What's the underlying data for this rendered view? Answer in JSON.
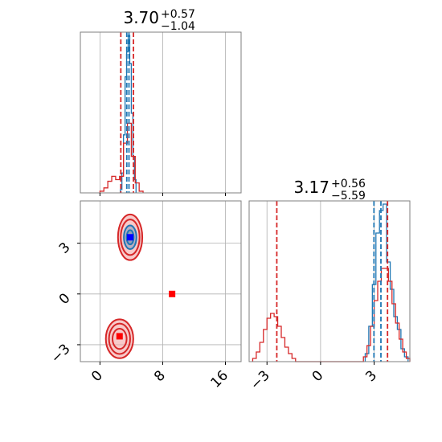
{
  "chart_data": [
    {
      "panel": "top-left",
      "type": "histogram",
      "title": {
        "value": "3.70",
        "plus": "+0.57",
        "minus": "−1.04"
      },
      "xlim": [
        -2.5,
        18
      ],
      "x_ticks": [
        0,
        8,
        16
      ],
      "series": [
        {
          "color": "#1f77b4",
          "bin_edges": [
            2.6,
            2.8,
            3.0,
            3.2,
            3.4,
            3.6,
            3.8,
            4.0,
            4.2,
            4.4,
            4.6
          ],
          "counts": [
            0.02,
            0.12,
            0.35,
            0.7,
            0.85,
            0.95,
            0.78,
            0.48,
            0.22,
            0.08
          ]
        },
        {
          "color": "#d62728",
          "bin_edges": [
            0.0,
            0.5,
            1.0,
            1.5,
            2.0,
            2.5,
            3.0,
            3.5,
            4.0,
            4.5,
            5.0,
            5.5
          ],
          "counts": [
            0.01,
            0.03,
            0.07,
            0.1,
            0.08,
            0.1,
            0.3,
            0.42,
            0.22,
            0.06,
            0.01
          ]
        }
      ],
      "vlines": [
        {
          "x": 2.66,
          "color": "#d62728"
        },
        {
          "x": 3.42,
          "color": "#1f77b4"
        },
        {
          "x": 3.7,
          "color": "#1f77b4"
        },
        {
          "x": 4.27,
          "color": "#d62728"
        }
      ]
    },
    {
      "panel": "bottom-left",
      "type": "scatter",
      "xlim": [
        -2.5,
        18
      ],
      "ylim": [
        -4,
        5.5
      ],
      "x_ticks": [
        0,
        8,
        16
      ],
      "y_ticks": [
        -3,
        0,
        3
      ],
      "x_tick_labels": [
        "0",
        "8",
        "16"
      ],
      "y_tick_labels": [
        "−3",
        "0",
        "3"
      ],
      "contours": [
        {
          "cx": 3.85,
          "cy": 3.35,
          "rx": 1.55,
          "ry": 1.35,
          "color": "#d62728"
        },
        {
          "cx": 3.85,
          "cy": 3.35,
          "rx": 1.2,
          "ry": 1.05,
          "color": "#d62728"
        },
        {
          "cx": 3.85,
          "cy": 3.35,
          "rx": 0.8,
          "ry": 0.7,
          "color": "#1f77b4"
        },
        {
          "cx": 3.85,
          "cy": 3.35,
          "rx": 0.45,
          "ry": 0.42,
          "color": "#1f77b4"
        },
        {
          "cx": 2.5,
          "cy": -2.65,
          "rx": 1.75,
          "ry": 1.15,
          "color": "#d62728"
        },
        {
          "cx": 2.5,
          "cy": -2.65,
          "rx": 1.35,
          "ry": 0.9,
          "color": "#d62728"
        },
        {
          "cx": 2.5,
          "cy": -2.65,
          "rx": 0.9,
          "ry": 0.6,
          "color": "#d62728"
        }
      ],
      "markers": [
        {
          "x": 3.85,
          "y": 3.35,
          "color": "#0000ff"
        },
        {
          "x": 2.5,
          "y": -2.5,
          "color": "#ff0000"
        },
        {
          "x": 9.2,
          "y": 0.0,
          "color": "#ff0000"
        }
      ]
    },
    {
      "panel": "bottom-right",
      "type": "histogram",
      "title": {
        "value": "3.17",
        "plus": "+0.56",
        "minus": "−5.59"
      },
      "xlim": [
        -4,
        5
      ],
      "x_ticks": [
        -3,
        0,
        3
      ],
      "x_tick_labels": [
        "−3",
        "0",
        "3"
      ],
      "series": [
        {
          "color": "#1f77b4",
          "bin_edges": [
            2.5,
            2.7,
            2.9,
            3.1,
            3.3,
            3.5,
            3.7,
            3.9,
            4.1,
            4.3,
            4.5,
            4.7,
            4.9
          ],
          "counts": [
            0.05,
            0.22,
            0.48,
            0.8,
            0.94,
            0.98,
            0.62,
            0.45,
            0.28,
            0.2,
            0.08,
            0.03
          ]
        },
        {
          "color": "#d62728",
          "bin_edges": [
            -3.8,
            -3.6,
            -3.4,
            -3.2,
            -3.0,
            -2.8,
            -2.6,
            -2.4,
            -2.2,
            -2.0,
            -1.8,
            -1.6,
            -1.4,
            2.4,
            2.6,
            2.8,
            3.0,
            3.2,
            3.4,
            3.6,
            3.8,
            4.0,
            4.2,
            4.4,
            4.6,
            4.8,
            5.0
          ],
          "counts": [
            0.02,
            0.06,
            0.12,
            0.2,
            0.27,
            0.3,
            0.28,
            0.22,
            0.15,
            0.09,
            0.05,
            0.02,
            0.0,
            0.03,
            0.1,
            0.22,
            0.38,
            0.5,
            0.58,
            0.58,
            0.5,
            0.36,
            0.24,
            0.14,
            0.06,
            0.02
          ]
        }
      ],
      "vlines": [
        {
          "x": -2.45,
          "color": "#d62728"
        },
        {
          "x": 2.99,
          "color": "#1f77b4"
        },
        {
          "x": 3.38,
          "color": "#1f77b4"
        },
        {
          "x": 3.75,
          "color": "#d62728"
        }
      ]
    }
  ]
}
